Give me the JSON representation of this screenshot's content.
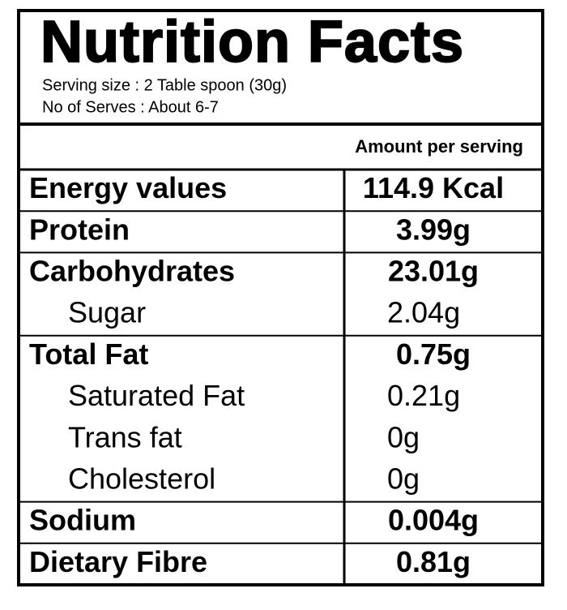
{
  "header": {
    "title": "Nutrition Facts",
    "serving_size": "Serving size : 2 Table spoon (30g)",
    "serves": "No of Serves : About 6-7"
  },
  "table": {
    "column_header": "Amount per serving",
    "rows": [
      {
        "label": "Energy values",
        "amount": "114.9 Kcal",
        "bold": true
      },
      {
        "label": "Protein",
        "amount": "3.99g",
        "bold": true
      },
      {
        "label": "Carbohydrates",
        "amount": "23.01g",
        "bold": true
      },
      {
        "label": "Sugar",
        "amount": "2.04g",
        "bold": false
      },
      {
        "label": "Total Fat",
        "amount": "0.75g",
        "bold": true
      },
      {
        "label": "Saturated Fat",
        "amount": "0.21g",
        "bold": false
      },
      {
        "label": "Trans fat",
        "amount": "0g",
        "bold": false
      },
      {
        "label": "Cholesterol",
        "amount": "0g",
        "bold": false
      },
      {
        "label": "Sodium",
        "amount": "0.004g",
        "bold": true
      },
      {
        "label": "Dietary Fibre",
        "amount": "0.81g",
        "bold": true
      }
    ]
  }
}
